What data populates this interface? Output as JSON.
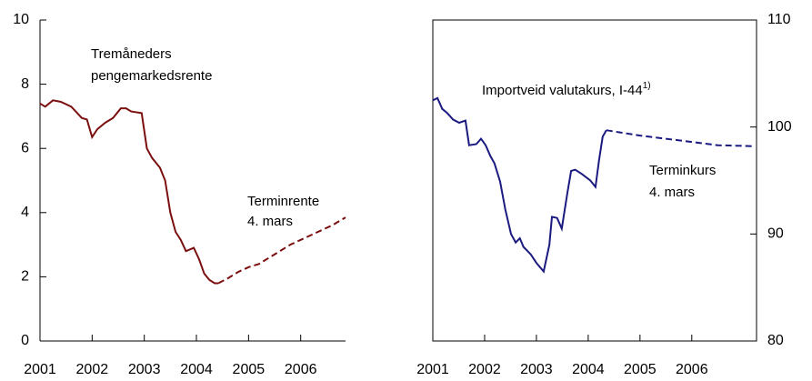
{
  "chart_data": [
    {
      "type": "line",
      "xlim": [
        2001,
        2006.86
      ],
      "xticks": [
        2001,
        2002,
        2003,
        2004,
        2005,
        2006
      ],
      "ylim": [
        0,
        10
      ],
      "yticks": [
        0,
        2,
        4,
        6,
        8,
        10
      ],
      "yaxis_side": "left",
      "frame": false,
      "annotations": [
        {
          "text": "Tremåneders"
        },
        {
          "text": "pengemarkedsrente"
        },
        {
          "text": "Terminrente"
        },
        {
          "text": "4. mars"
        }
      ],
      "series": [
        {
          "color": "#7b0f0f",
          "dash": false,
          "x": [
            2001.0,
            2001.1,
            2001.25,
            2001.4,
            2001.6,
            2001.8,
            2001.9,
            2002.0,
            2002.1,
            2002.25,
            2002.4,
            2002.55,
            2002.65,
            2002.75,
            2002.95,
            2003.05,
            2003.15,
            2003.3,
            2003.4,
            2003.5,
            2003.6,
            2003.7,
            2003.8,
            2003.95,
            2004.05,
            2004.15,
            2004.25,
            2004.35,
            2004.42
          ],
          "values": [
            7.4,
            7.3,
            7.5,
            7.45,
            7.3,
            6.95,
            6.9,
            6.35,
            6.6,
            6.8,
            6.95,
            7.25,
            7.25,
            7.15,
            7.1,
            6.0,
            5.7,
            5.4,
            5.0,
            4.0,
            3.4,
            3.15,
            2.8,
            2.9,
            2.55,
            2.1,
            1.9,
            1.8,
            1.8
          ]
        },
        {
          "color": "#7b0f0f",
          "dash": true,
          "x": [
            2004.42,
            2004.6,
            2004.8,
            2005.0,
            2005.2,
            2005.4,
            2005.6,
            2005.8,
            2006.0,
            2006.2,
            2006.4,
            2006.6,
            2006.86
          ],
          "values": [
            1.8,
            1.95,
            2.15,
            2.3,
            2.4,
            2.6,
            2.8,
            3.0,
            3.15,
            3.3,
            3.45,
            3.6,
            3.85
          ]
        }
      ]
    },
    {
      "type": "line",
      "xlim": [
        2001,
        2007.25
      ],
      "xticks": [
        2001,
        2002,
        2003,
        2004,
        2005,
        2006
      ],
      "ylim": [
        80,
        110
      ],
      "yticks": [
        80,
        90,
        100,
        110
      ],
      "yaxis_side": "right",
      "frame": true,
      "annotations": [
        {
          "text": "Importveid valutakurs, I-44",
          "sup": "1)"
        },
        {
          "text": "Terminkurs"
        },
        {
          "text": "4. mars"
        }
      ],
      "series": [
        {
          "color": "#1a1a80",
          "dash": false,
          "x": [
            2001.0,
            2001.09,
            2001.18,
            2001.28,
            2001.39,
            2001.51,
            2001.63,
            2001.7,
            2001.84,
            2001.93,
            2002.02,
            2002.11,
            2002.19,
            2002.3,
            2002.4,
            2002.51,
            2002.6,
            2002.68,
            2002.75,
            2002.89,
            2003.0,
            2003.14,
            2003.25,
            2003.3,
            2003.4,
            2003.49,
            2003.6,
            2003.67,
            2003.75,
            2003.88,
            2004.04,
            2004.14,
            2004.21,
            2004.28,
            2004.35
          ],
          "values": [
            102.5,
            102.7,
            101.7,
            101.3,
            100.7,
            100.4,
            100.6,
            98.3,
            98.4,
            98.9,
            98.3,
            97.3,
            96.6,
            94.9,
            92.3,
            90.0,
            89.2,
            89.6,
            88.8,
            88.1,
            87.3,
            86.5,
            89.0,
            91.6,
            91.5,
            90.5,
            93.9,
            95.9,
            96.0,
            95.6,
            95.0,
            94.4,
            96.9,
            99.1,
            99.7
          ]
        },
        {
          "color": "#1a1a80",
          "dash": true,
          "x": [
            2004.35,
            2004.6,
            2005.0,
            2005.5,
            2006.0,
            2006.5,
            2007.2
          ],
          "values": [
            99.7,
            99.5,
            99.2,
            98.9,
            98.6,
            98.3,
            98.2
          ]
        }
      ]
    }
  ]
}
